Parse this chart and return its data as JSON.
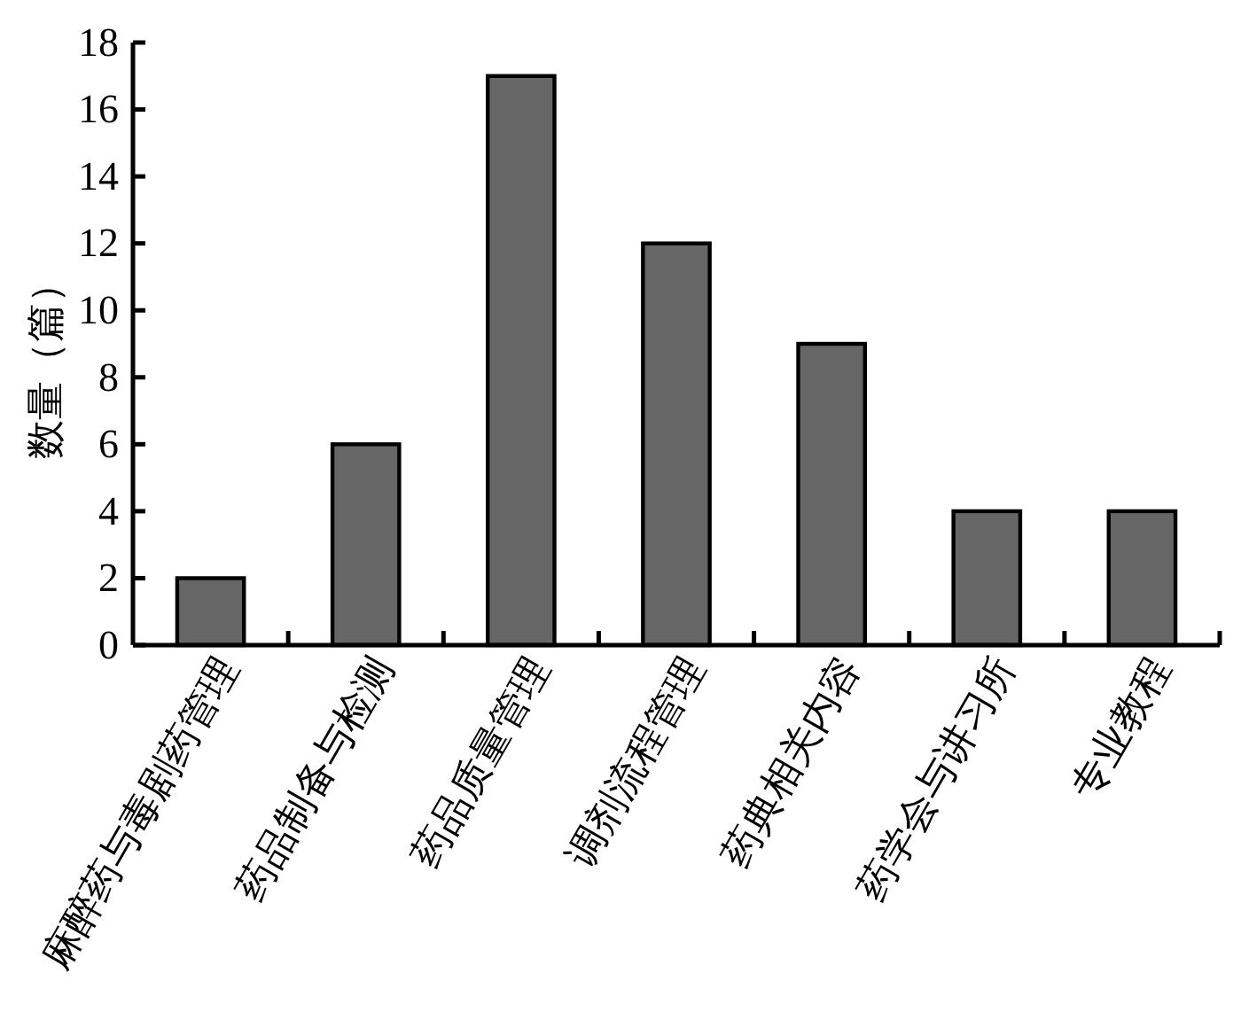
{
  "chart_data": {
    "type": "bar",
    "ylabel": "数量（篇）",
    "categories": [
      "麻醉药与毒剧药管理",
      "药品制备与检测",
      "药品质量管理",
      "调剂流程管理",
      "药典相关内容",
      "药学会与讲习所",
      "专业教程"
    ],
    "values": [
      2,
      6,
      17,
      12,
      9,
      4,
      4
    ],
    "color": "#666666",
    "ylim": [
      0,
      18
    ],
    "yticks": [
      0,
      2,
      4,
      6,
      8,
      10,
      12,
      14,
      16,
      18
    ],
    "grid": false
  }
}
